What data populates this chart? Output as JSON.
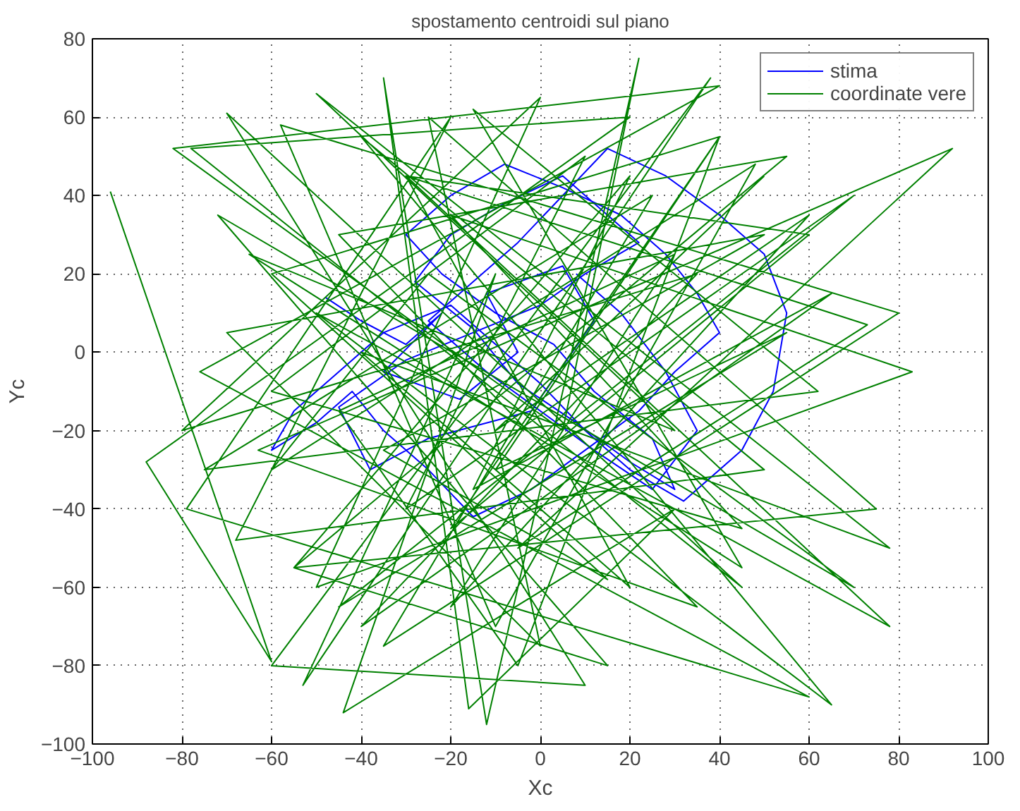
{
  "chart_data": {
    "type": "line",
    "title": "spostamento centroidi sul piano",
    "xlabel": "Xc",
    "ylabel": "Yc",
    "xlim": [
      -100,
      100
    ],
    "ylim": [
      -100,
      80
    ],
    "xticks": [
      -100,
      -80,
      -60,
      -40,
      -20,
      0,
      20,
      40,
      60,
      80,
      100
    ],
    "yticks": [
      -100,
      -80,
      -60,
      -40,
      -20,
      0,
      20,
      40,
      60,
      80
    ],
    "grid": true,
    "legend": "top right",
    "marker": "none",
    "line_style": "solid",
    "series": [
      {
        "name": "stima",
        "color": "#0000ff",
        "x": [
          -48,
          -40,
          -30,
          -22,
          -35,
          -18,
          -5,
          -12,
          5,
          12,
          -2,
          -25,
          -38,
          -45,
          -30,
          -15,
          0,
          10,
          22,
          15,
          5,
          -8,
          -20,
          -28,
          -15,
          -5,
          8,
          20,
          30,
          25,
          12,
          3,
          -10,
          -22,
          -30,
          -20,
          -8,
          5,
          18,
          28,
          35,
          40,
          30,
          22,
          10,
          -2,
          -15,
          -25,
          -35,
          -42,
          -50,
          -60,
          -55,
          -45,
          -35,
          -20,
          -10,
          0,
          10,
          20,
          32,
          45,
          52,
          55,
          50,
          40,
          28,
          15,
          5,
          -5,
          -15,
          -25,
          -12,
          0,
          12,
          25,
          35,
          28,
          18,
          8
        ],
        "values": [
          14,
          8,
          2,
          10,
          -5,
          -12,
          0,
          15,
          22,
          8,
          -15,
          -22,
          -30,
          -14,
          -2,
          5,
          12,
          20,
          28,
          35,
          45,
          38,
          30,
          18,
          6,
          -8,
          -18,
          -28,
          -35,
          -22,
          -10,
          2,
          10,
          20,
          30,
          40,
          48,
          42,
          35,
          25,
          15,
          5,
          -5,
          -15,
          -25,
          -35,
          -42,
          -30,
          -20,
          -10,
          -18,
          -25,
          -15,
          -5,
          5,
          12,
          2,
          -8,
          -20,
          -30,
          -38,
          -25,
          -10,
          10,
          25,
          35,
          45,
          52,
          40,
          28,
          18,
          8,
          -5,
          -15,
          -25,
          -35,
          -20,
          -5,
          10,
          20
        ]
      },
      {
        "name": "coordinate vere",
        "color": "#008000",
        "x": [
          -96,
          -60,
          -88,
          20,
          -78,
          45,
          -70,
          10,
          -60,
          38,
          -53,
          -10,
          -44,
          30,
          -16,
          -35,
          -12,
          22,
          5,
          -82,
          40,
          -76,
          60,
          -79,
          -20,
          -68,
          50,
          -40,
          65,
          -50,
          78,
          -30,
          73,
          -5,
          92,
          -63,
          35,
          -45,
          55,
          -55,
          15,
          -72,
          70,
          -25,
          -60,
          48,
          -10,
          -58,
          80,
          -35,
          25,
          -75,
          62,
          -15,
          45,
          -65,
          30,
          -50,
          78,
          -40,
          20,
          -30,
          60,
          -20,
          40,
          -10,
          55,
          -45,
          70,
          -30,
          10,
          -60,
          45,
          -20,
          83,
          -50,
          0,
          -80,
          35,
          -40,
          65,
          -15,
          20,
          -55,
          75,
          -25,
          0,
          -70,
          50,
          -35,
          15,
          -60,
          40,
          -5,
          -45,
          30,
          -20,
          60,
          -10,
          50
        ],
        "values": [
          41,
          -79,
          -28,
          60,
          52,
          -60,
          61,
          -85,
          -80,
          70,
          -85,
          20,
          -92,
          -40,
          -91,
          70,
          -95,
          75,
          -20,
          52,
          68,
          -5,
          -88,
          -40,
          60,
          -48,
          -30,
          55,
          -90,
          10,
          -70,
          45,
          7,
          -50,
          52,
          -25,
          -65,
          30,
          50,
          -55,
          -80,
          35,
          -60,
          20,
          -30,
          48,
          -70,
          58,
          10,
          -75,
          40,
          -30,
          -10,
          62,
          -55,
          25,
          -20,
          66,
          -50,
          0,
          -60,
          45,
          30,
          -45,
          55,
          -30,
          5,
          -65,
          40,
          -40,
          50,
          -10,
          -45,
          35,
          -5,
          -60,
          65,
          -20,
          20,
          -70,
          15,
          -35,
          45,
          -55,
          -40,
          60,
          -75,
          5,
          30,
          -25,
          -58,
          20,
          55,
          -80,
          -15,
          25,
          -65,
          35,
          -20,
          45
        ]
      }
    ]
  }
}
